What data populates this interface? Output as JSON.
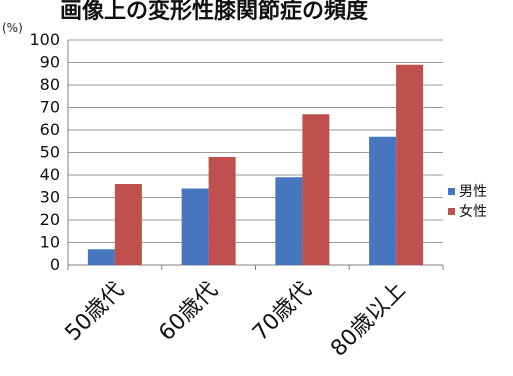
{
  "chart_data": {
    "type": "bar",
    "title": "画像上の変形性膝関節症の頻度",
    "unit_label": "(%)",
    "categories": [
      "50歳代",
      "60歳代",
      "70歳代",
      "80歳以上"
    ],
    "series": [
      {
        "name": "男性",
        "values": [
          7,
          34,
          39,
          57
        ],
        "color": "#4677BE"
      },
      {
        "name": "女性",
        "values": [
          36,
          48,
          67,
          89
        ],
        "color": "#C0504D"
      }
    ],
    "ylim": [
      0,
      100
    ],
    "yticks": [
      0,
      10,
      20,
      30,
      40,
      50,
      60,
      70,
      80,
      90,
      100
    ],
    "grid": "horizontal",
    "legend_position": "right"
  }
}
